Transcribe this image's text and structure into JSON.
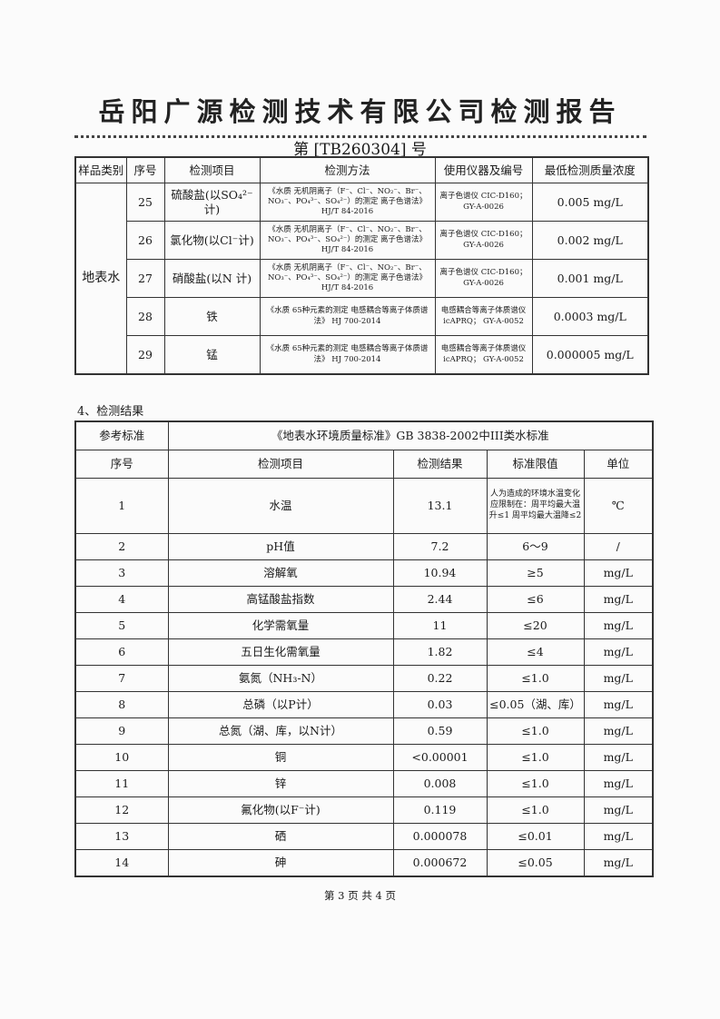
{
  "title": "岳阳广源检测技术有限公司检测报告",
  "report_no": "第 [TB260304] 号",
  "method_table": {
    "headers": [
      "样品类别",
      "序号",
      "检测项目",
      "检测方法",
      "使用仪器及编号",
      "最低检测质量浓度"
    ],
    "sample_type": "地表水",
    "rows": [
      {
        "no": "25",
        "item": "硫酸盐(以SO₄²⁻计)",
        "method": "《水质 无机阴离子（F⁻、Cl⁻、NO₂⁻、Br⁻、NO₃⁻、PO₄³⁻、SO₄²⁻）的测定 离子色谱法》HJ/T 84-2016",
        "instrument": "离子色谱仪 CIC-D160； GY-A-0026",
        "limit": "0.005 mg/L"
      },
      {
        "no": "26",
        "item": "氯化物(以Cl⁻计)",
        "method": "《水质 无机阴离子（F⁻、Cl⁻、NO₂⁻、Br⁻、NO₃⁻、PO₄³⁻、SO₄²⁻）的测定 离子色谱法》HJ/T 84-2016",
        "instrument": "离子色谱仪 CIC-D160； GY-A-0026",
        "limit": "0.002 mg/L"
      },
      {
        "no": "27",
        "item": "硝酸盐(以N 计)",
        "method": "《水质 无机阴离子（F⁻、Cl⁻、NO₂⁻、Br⁻、NO₃⁻、PO₄³⁻、SO₄²⁻）的测定 离子色谱法》HJ/T 84-2016",
        "instrument": "离子色谱仪 CIC-D160； GY-A-0026",
        "limit": "0.001 mg/L"
      },
      {
        "no": "28",
        "item": "铁",
        "method": "《水质 65种元素的测定 电感耦合等离子体质谱法》 HJ 700-2014",
        "instrument": "电感耦合等离子体质谱仪icAPRQ； GY-A-0052",
        "limit": "0.0003 mg/L"
      },
      {
        "no": "29",
        "item": "锰",
        "method": "《水质 65种元素的测定 电感耦合等离子体质谱法》 HJ 700-2014",
        "instrument": "电感耦合等离子体质谱仪icAPRQ； GY-A-0052",
        "limit": "0.000005 mg/L"
      }
    ]
  },
  "section_title": "4、检测结果",
  "result_table": {
    "ref_label": "参考标准",
    "ref_value": "《地表水环境质量标准》GB 3838-2002中III类水标准",
    "headers": [
      "序号",
      "检测项目",
      "检测结果",
      "标准限值",
      "单位"
    ],
    "rows": [
      {
        "no": "1",
        "item": "水温",
        "result": "13.1",
        "limit": "人为造成的环境水温变化应限制在：周平均最大温升≤1 周平均最大温降≤2",
        "unit": "℃"
      },
      {
        "no": "2",
        "item": "pH值",
        "result": "7.2",
        "limit": "6～9",
        "unit": "/"
      },
      {
        "no": "3",
        "item": "溶解氧",
        "result": "10.94",
        "limit": "≥5",
        "unit": "mg/L"
      },
      {
        "no": "4",
        "item": "高锰酸盐指数",
        "result": "2.44",
        "limit": "≤6",
        "unit": "mg/L"
      },
      {
        "no": "5",
        "item": "化学需氧量",
        "result": "11",
        "limit": "≤20",
        "unit": "mg/L"
      },
      {
        "no": "6",
        "item": "五日生化需氧量",
        "result": "1.82",
        "limit": "≤4",
        "unit": "mg/L"
      },
      {
        "no": "7",
        "item": "氨氮（NH₃-N）",
        "result": "0.22",
        "limit": "≤1.0",
        "unit": "mg/L"
      },
      {
        "no": "8",
        "item": "总磷（以P计）",
        "result": "0.03",
        "limit": "≤0.05（湖、库）",
        "unit": "mg/L"
      },
      {
        "no": "9",
        "item": "总氮（湖、库，以N计）",
        "result": "0.59",
        "limit": "≤1.0",
        "unit": "mg/L"
      },
      {
        "no": "10",
        "item": "铜",
        "result": "<0.00001",
        "limit": "≤1.0",
        "unit": "mg/L"
      },
      {
        "no": "11",
        "item": "锌",
        "result": "0.008",
        "limit": "≤1.0",
        "unit": "mg/L"
      },
      {
        "no": "12",
        "item": "氟化物(以F⁻计)",
        "result": "0.119",
        "limit": "≤1.0",
        "unit": "mg/L"
      },
      {
        "no": "13",
        "item": "硒",
        "result": "0.000078",
        "limit": "≤0.01",
        "unit": "mg/L"
      },
      {
        "no": "14",
        "item": "砷",
        "result": "0.000672",
        "limit": "≤0.05",
        "unit": "mg/L"
      }
    ]
  },
  "footer": "第 3 页  共 4 页"
}
